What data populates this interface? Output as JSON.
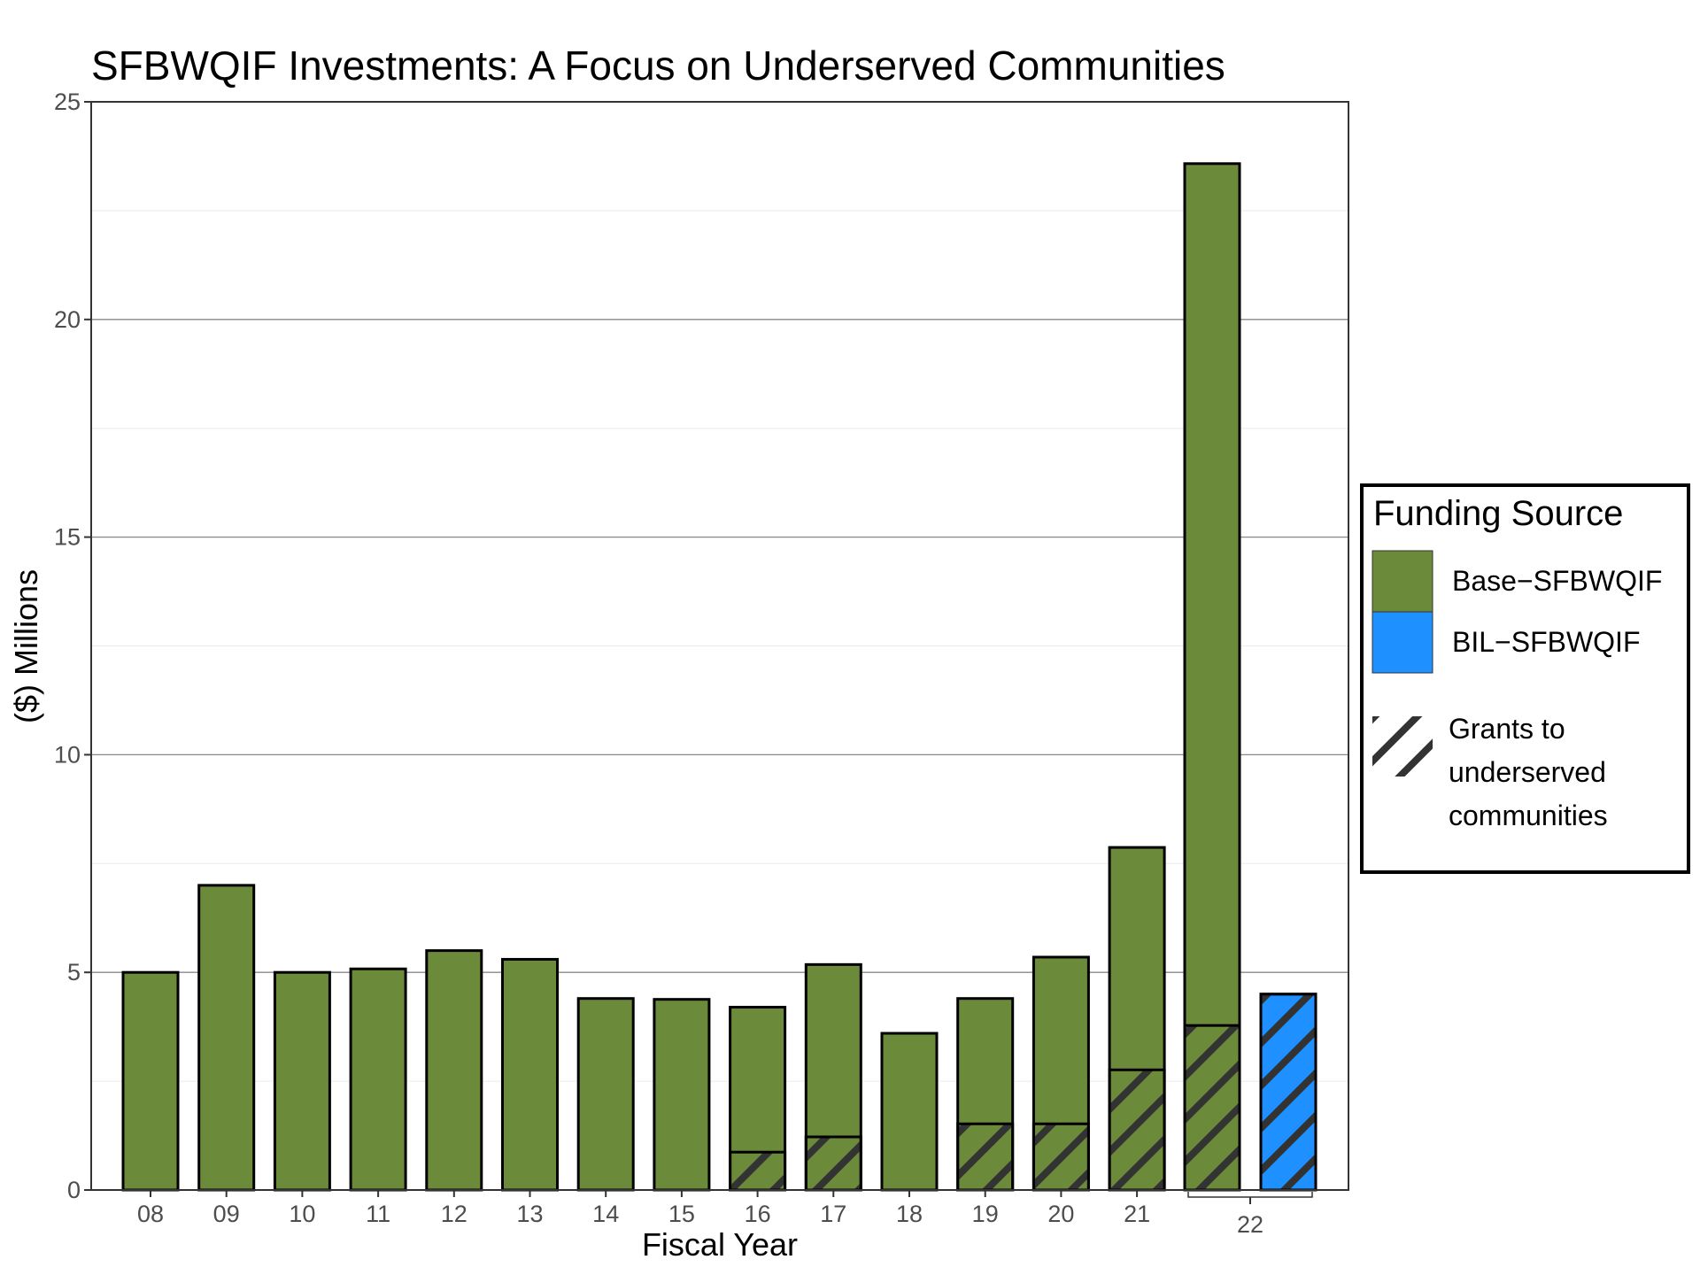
{
  "chart_data": {
    "type": "bar",
    "title": "SFBWQIF Investments: A Focus on Underserved Communities",
    "xlabel": "Fiscal Year",
    "ylabel": "($) Millions",
    "ylim": [
      0,
      25
    ],
    "yticks": [
      0,
      5,
      10,
      15,
      20,
      25
    ],
    "grid": true,
    "legend_position": "right",
    "legend": {
      "title": "Funding Source",
      "items": [
        {
          "label": "Base−SFBWQIF",
          "color": "#6b8a3a"
        },
        {
          "label": "BIL−SFBWQIF",
          "color": "#1e90ff"
        }
      ],
      "pattern_label": "Grants to underserved communities",
      "pattern_lines": [
        "Grants to",
        "underserved",
        "communities"
      ]
    },
    "categories": [
      "08",
      "09",
      "10",
      "11",
      "12",
      "13",
      "14",
      "15",
      "16",
      "17",
      "18",
      "19",
      "20",
      "21",
      "22"
    ],
    "series": [
      {
        "name": "Base−SFBWQIF",
        "color": "#6b8a3a",
        "total": [
          5.0,
          7.0,
          5.0,
          5.08,
          5.5,
          5.3,
          4.4,
          4.38,
          4.2,
          5.18,
          3.6,
          4.4,
          5.35,
          7.87,
          23.58
        ],
        "grants_underserved": [
          0,
          0,
          0,
          0,
          0,
          0,
          0,
          0,
          0.87,
          1.22,
          0,
          1.52,
          1.52,
          2.76,
          3.78
        ]
      },
      {
        "name": "BIL−SFBWQIF",
        "color": "#1e90ff",
        "total": [
          null,
          null,
          null,
          null,
          null,
          null,
          null,
          null,
          null,
          null,
          null,
          null,
          null,
          null,
          4.5
        ],
        "grants_underserved": [
          null,
          null,
          null,
          null,
          null,
          null,
          null,
          null,
          null,
          null,
          null,
          null,
          null,
          null,
          4.5
        ]
      }
    ]
  }
}
